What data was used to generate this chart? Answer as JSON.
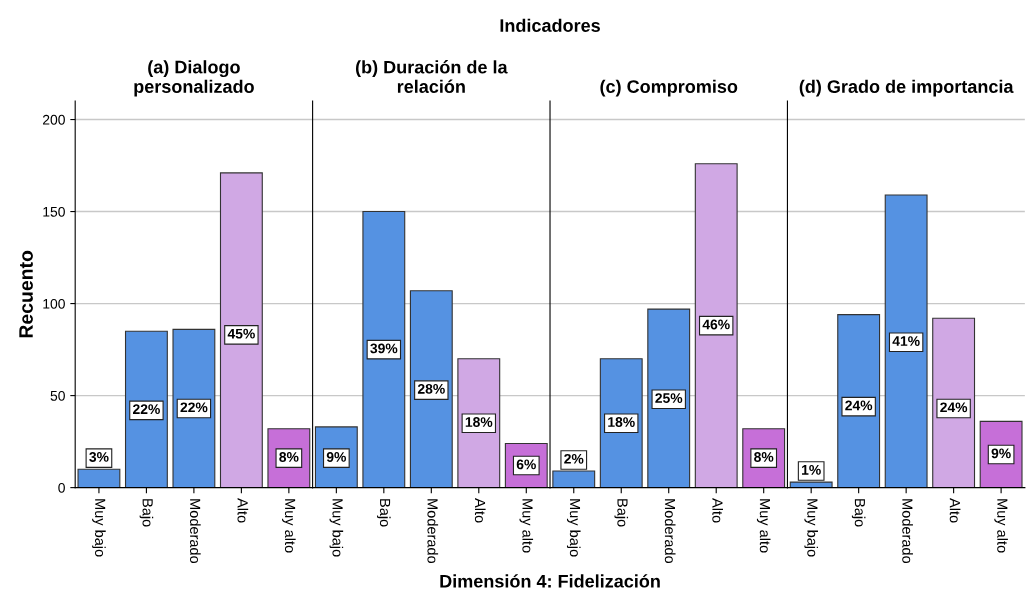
{
  "chart_data": [
    {
      "type": "bar",
      "title": "(a) Dialogo\npersonalizado",
      "ylabel": "Recuento",
      "annotations": [
        "Indicadores",
        "Dimensión 4: Fidelización",
        {
          "text": "3%",
          "x": "Muy bajo",
          "y": 16
        },
        {
          "text": "22%",
          "x": "Bajo",
          "y": 42
        },
        {
          "text": "22%",
          "x": "Moderado",
          "y": 43
        },
        {
          "text": "45%",
          "x": "Alto",
          "y": 83
        },
        {
          "text": "8%",
          "x": "Muy alto",
          "y": 16
        }
      ],
      "categories": [
        "Muy bajo",
        "Bajo",
        "Moderado",
        "Alto",
        "Muy alto"
      ],
      "values": [
        10,
        85,
        86,
        171,
        32
      ],
      "colors": [
        "#5592e2",
        "#5592e2",
        "#5592e2",
        "#d0a8e4",
        "#c66fd8"
      ],
      "ylim": [
        0,
        210
      ],
      "yticks": [
        0,
        50,
        100,
        150,
        200
      ],
      "grid": "y"
    },
    {
      "type": "bar",
      "title": "(b) Duración de la\nrelación",
      "annotations": [
        {
          "text": "9%",
          "x": "Muy bajo",
          "y": 16
        },
        {
          "text": "39%",
          "x": "Bajo",
          "y": 75
        },
        {
          "text": "28%",
          "x": "Moderado",
          "y": 53
        },
        {
          "text": "18%",
          "x": "Alto",
          "y": 35
        },
        {
          "text": "6%",
          "x": "Muy alto",
          "y": 12
        }
      ],
      "categories": [
        "Muy bajo",
        "Bajo",
        "Moderado",
        "Alto",
        "Muy alto"
      ],
      "values": [
        33,
        150,
        107,
        70,
        24
      ],
      "colors": [
        "#5592e2",
        "#5592e2",
        "#5592e2",
        "#d0a8e4",
        "#c66fd8"
      ],
      "ylim": [
        0,
        210
      ],
      "yticks": [
        0,
        50,
        100,
        150,
        200
      ],
      "grid": "y",
      "tick_labels": "x"
    },
    {
      "type": "bar",
      "title": "(c) Compromiso",
      "annotations": [
        {
          "text": "2%",
          "x": "Muy bajo",
          "y": 15
        },
        {
          "text": "18%",
          "x": "Bajo",
          "y": 35
        },
        {
          "text": "25%",
          "x": "Moderado",
          "y": 48
        },
        {
          "text": "46%",
          "x": "Alto",
          "y": 88
        },
        {
          "text": "8%",
          "x": "Muy alto",
          "y": 16
        }
      ],
      "categories": [
        "Muy bajo",
        "Bajo",
        "Moderado",
        "Alto",
        "Muy alto"
      ],
      "values": [
        9,
        70,
        97,
        176,
        32
      ],
      "colors": [
        "#5592e2",
        "#5592e2",
        "#5592e2",
        "#d0a8e4",
        "#c66fd8"
      ],
      "ylim": [
        0,
        210
      ],
      "yticks": [
        0,
        50,
        100,
        150,
        200
      ],
      "grid": "y",
      "tick_labels": "x"
    },
    {
      "type": "bar",
      "title": "(d) Grado de importancia",
      "annotations": [
        {
          "text": "1%",
          "x": "Muy bajo",
          "y": 9
        },
        {
          "text": "24%",
          "x": "Bajo",
          "y": 44
        },
        {
          "text": "41%",
          "x": "Moderado",
          "y": 79
        },
        {
          "text": "24%",
          "x": "Alto",
          "y": 43
        },
        {
          "text": "9%",
          "x": "Muy alto",
          "y": 18
        }
      ],
      "categories": [
        "Muy bajo",
        "Bajo",
        "Moderado",
        "Alto",
        "Muy alto"
      ],
      "values": [
        3,
        94,
        159,
        92,
        36
      ],
      "colors": [
        "#5592e2",
        "#5592e2",
        "#5592e2",
        "#d0a8e4",
        "#c66fd8"
      ],
      "ylim": [
        0,
        210
      ],
      "yticks": [
        0,
        50,
        100,
        150,
        200
      ],
      "grid": "y",
      "tick_labels": "x"
    }
  ]
}
